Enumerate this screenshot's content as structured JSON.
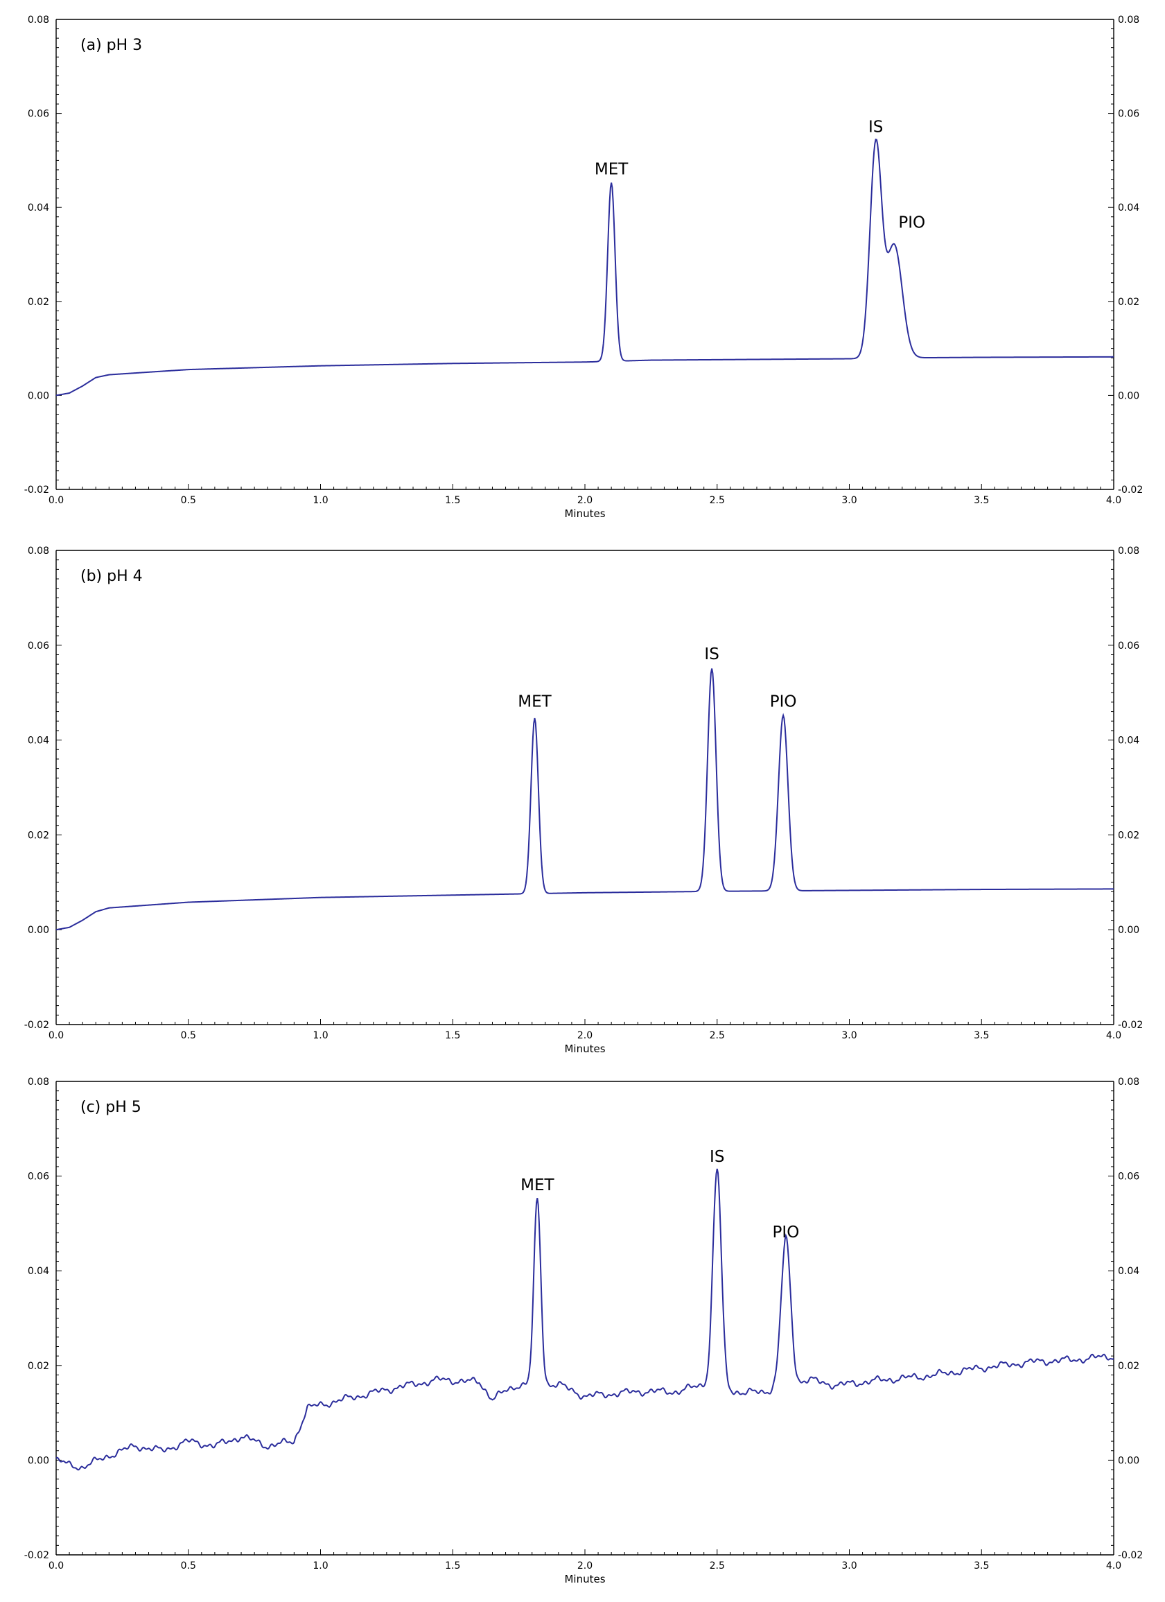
{
  "chart_data": [
    {
      "type": "line",
      "panel_label": "(a) pH 3",
      "xlabel": "Minutes",
      "xlim": [
        0.0,
        4.0
      ],
      "ylim": [
        -0.02,
        0.08
      ],
      "x_ticks": [
        "0.0",
        "0.5",
        "1.0",
        "1.5",
        "2.0",
        "2.5",
        "3.0",
        "3.5",
        "4.0"
      ],
      "y_ticks": [
        "-0.02",
        "0.00",
        "0.02",
        "0.04",
        "0.06",
        "0.08"
      ],
      "grid": false,
      "line_color": "#2b2d9c",
      "baseline": [
        [
          0.0,
          0.0
        ],
        [
          0.05,
          0.0005
        ],
        [
          0.1,
          0.002
        ],
        [
          0.15,
          0.0038
        ],
        [
          0.2,
          0.0044
        ],
        [
          0.5,
          0.0055
        ],
        [
          1.0,
          0.0063
        ],
        [
          1.5,
          0.0068
        ],
        [
          2.0,
          0.0071
        ],
        [
          2.25,
          0.0075
        ],
        [
          2.5,
          0.0076
        ],
        [
          3.0,
          0.0078
        ],
        [
          3.25,
          0.008
        ],
        [
          3.5,
          0.0081
        ],
        [
          4.0,
          0.0082
        ]
      ],
      "peaks": [
        {
          "center": 2.1,
          "height": 0.038,
          "width": 0.014,
          "label": "MET",
          "apex": 0.045
        },
        {
          "center": 3.1,
          "height": 0.045,
          "width": 0.022,
          "label": "IS",
          "apex": 0.054
        },
        {
          "center": 3.17,
          "height": 0.024,
          "width": 0.03,
          "label": "PIO",
          "apex": 0.036
        }
      ],
      "noise": 0
    },
    {
      "type": "line",
      "panel_label": "(b) pH 4",
      "xlabel": "Minutes",
      "xlim": [
        0.0,
        4.0
      ],
      "ylim": [
        -0.02,
        0.08
      ],
      "x_ticks": [
        "0.0",
        "0.5",
        "1.0",
        "1.5",
        "2.0",
        "2.5",
        "3.0",
        "3.5",
        "4.0"
      ],
      "y_ticks": [
        "-0.02",
        "0.00",
        "0.02",
        "0.04",
        "0.06",
        "0.08"
      ],
      "grid": false,
      "line_color": "#2b2d9c",
      "baseline": [
        [
          0.0,
          0.0
        ],
        [
          0.05,
          0.0005
        ],
        [
          0.1,
          0.002
        ],
        [
          0.15,
          0.0038
        ],
        [
          0.2,
          0.0046
        ],
        [
          0.5,
          0.0058
        ],
        [
          1.0,
          0.0068
        ],
        [
          1.5,
          0.0073
        ],
        [
          2.0,
          0.0078
        ],
        [
          2.5,
          0.0081
        ],
        [
          3.0,
          0.0083
        ],
        [
          3.5,
          0.0085
        ],
        [
          4.0,
          0.0086
        ]
      ],
      "peaks": [
        {
          "center": 1.81,
          "height": 0.037,
          "width": 0.014,
          "label": "MET",
          "apex": 0.045
        },
        {
          "center": 2.48,
          "height": 0.047,
          "width": 0.016,
          "label": "IS",
          "apex": 0.055
        },
        {
          "center": 2.75,
          "height": 0.037,
          "width": 0.018,
          "label": "PIO",
          "apex": 0.045
        }
      ],
      "noise": 0
    },
    {
      "type": "line",
      "panel_label": "(c) pH 5",
      "xlabel": "Minutes",
      "xlim": [
        0.0,
        4.0
      ],
      "ylim": [
        -0.02,
        0.08
      ],
      "x_ticks": [
        "0.0",
        "0.5",
        "1.0",
        "1.5",
        "2.0",
        "2.5",
        "3.0",
        "3.5",
        "4.0"
      ],
      "y_ticks": [
        "-0.02",
        "0.00",
        "0.02",
        "0.04",
        "0.06",
        "0.08"
      ],
      "grid": false,
      "line_color": "#2b2d9c",
      "baseline": [
        [
          0.0,
          0.0
        ],
        [
          0.05,
          -0.001
        ],
        [
          0.1,
          -0.0015
        ],
        [
          0.2,
          0.001
        ],
        [
          0.3,
          0.003
        ],
        [
          0.4,
          0.002
        ],
        [
          0.5,
          0.004
        ],
        [
          0.6,
          0.003
        ],
        [
          0.7,
          0.005
        ],
        [
          0.8,
          0.003
        ],
        [
          0.9,
          0.004
        ],
        [
          0.95,
          0.011
        ],
        [
          1.1,
          0.013
        ],
        [
          1.3,
          0.0155
        ],
        [
          1.45,
          0.017
        ],
        [
          1.6,
          0.0165
        ],
        [
          1.65,
          0.013
        ],
        [
          1.7,
          0.0145
        ],
        [
          1.75,
          0.016
        ],
        [
          1.9,
          0.016
        ],
        [
          2.0,
          0.0135
        ],
        [
          2.2,
          0.0145
        ],
        [
          2.35,
          0.0145
        ],
        [
          2.45,
          0.016
        ],
        [
          2.6,
          0.0142
        ],
        [
          2.68,
          0.0145
        ],
        [
          2.85,
          0.017
        ],
        [
          2.95,
          0.0158
        ],
        [
          3.1,
          0.0168
        ],
        [
          3.3,
          0.0178
        ],
        [
          3.5,
          0.0195
        ],
        [
          3.7,
          0.0208
        ],
        [
          3.85,
          0.0212
        ],
        [
          4.0,
          0.022
        ]
      ],
      "peaks": [
        {
          "center": 1.82,
          "height": 0.039,
          "width": 0.013,
          "label": "MET",
          "apex": 0.055
        },
        {
          "center": 2.5,
          "height": 0.046,
          "width": 0.016,
          "label": "IS",
          "apex": 0.061
        },
        {
          "center": 2.76,
          "height": 0.031,
          "width": 0.018,
          "label": "PIO",
          "apex": 0.045
        }
      ],
      "noise": 0.0009
    }
  ]
}
